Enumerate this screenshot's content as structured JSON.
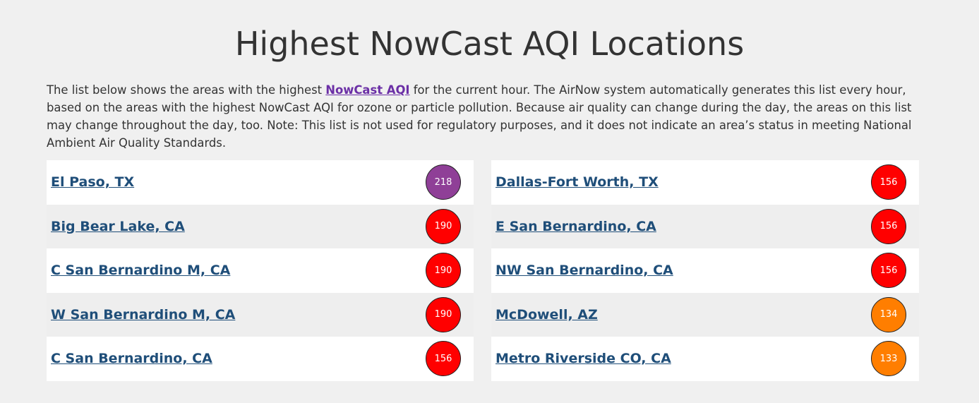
{
  "page": {
    "title": "Highest NowCast AQI Locations",
    "intro_before": "The list below shows the areas with the highest ",
    "intro_link": "NowCast AQI",
    "intro_after": " for the current hour. The AirNow system automatically generates this list every hour, based on the areas with the highest NowCast AQI for ozone or particle pollution. Because air quality can change during the day, the areas on this list may change throughout the day, too. Note: This list is not used for regulatory purposes, and it does not indicate an area’s status in meeting National Ambient Air Quality Standards."
  },
  "colors": {
    "very_unhealthy": "#8f3f97",
    "unhealthy": "#ff0000",
    "unhealthy_sensitive": "#ff7e00"
  },
  "locations": {
    "left": [
      {
        "name": "El Paso, TX",
        "aqi": "218",
        "category": "very_unhealthy"
      },
      {
        "name": "Big Bear Lake, CA",
        "aqi": "190",
        "category": "unhealthy"
      },
      {
        "name": "C San Bernardino M, CA",
        "aqi": "190",
        "category": "unhealthy"
      },
      {
        "name": "W San Bernardino M, CA",
        "aqi": "190",
        "category": "unhealthy"
      },
      {
        "name": "C San Bernardino, CA",
        "aqi": "156",
        "category": "unhealthy"
      }
    ],
    "right": [
      {
        "name": "Dallas-Fort Worth, TX",
        "aqi": "156",
        "category": "unhealthy"
      },
      {
        "name": "E San Bernardino, CA",
        "aqi": "156",
        "category": "unhealthy"
      },
      {
        "name": "NW San Bernardino, CA",
        "aqi": "156",
        "category": "unhealthy"
      },
      {
        "name": "McDowell, AZ",
        "aqi": "134",
        "category": "unhealthy_sensitive"
      },
      {
        "name": "Metro Riverside CO, CA",
        "aqi": "133",
        "category": "unhealthy_sensitive"
      }
    ]
  }
}
